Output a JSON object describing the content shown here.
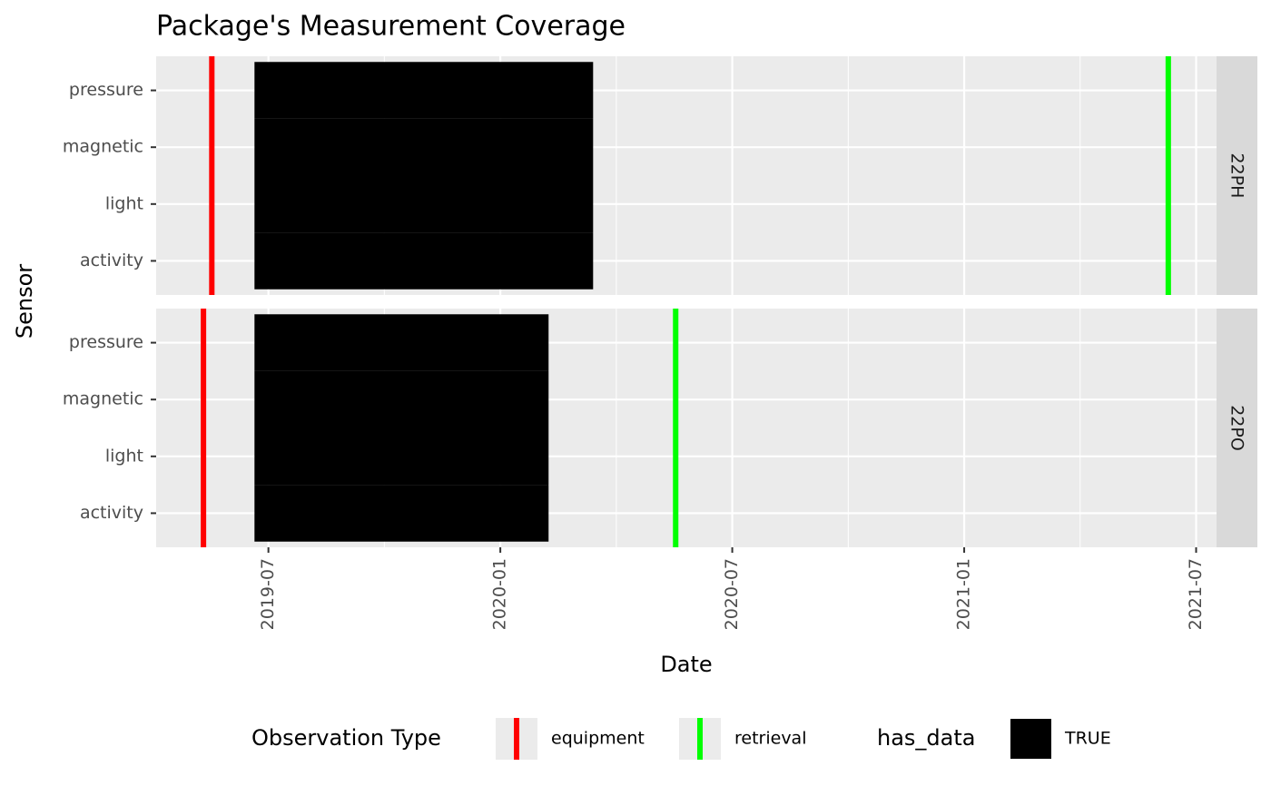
{
  "chart_data": {
    "type": "timeline",
    "title": "Package's Measurement Coverage",
    "x_label": "Date",
    "y_label": "Sensor",
    "categories": [
      "activity",
      "light",
      "magnetic",
      "pressure"
    ],
    "xlim": [
      2019.258,
      2021.544
    ],
    "xticks": [
      {
        "value": 2019.5,
        "label": "2019-07"
      },
      {
        "value": 2020.0,
        "label": "2020-01"
      },
      {
        "value": 2020.5,
        "label": "2020-07"
      },
      {
        "value": 2021.0,
        "label": "2021-01"
      },
      {
        "value": 2021.5,
        "label": "2021-07"
      }
    ],
    "x_minor_ticks": [
      2019.75,
      2020.25,
      2020.75,
      2021.25
    ],
    "grid": true,
    "panels": [
      {
        "label": "22PH",
        "starts": [
          2019.47,
          2019.47,
          2019.47,
          2019.47
        ],
        "ends": [
          2020.2,
          2020.2,
          2020.2,
          2020.2
        ],
        "equipment": 2019.378,
        "retrieval": 2021.44
      },
      {
        "label": "22PO",
        "starts": [
          2019.47,
          2019.47,
          2019.47,
          2019.47
        ],
        "ends": [
          2020.104,
          2020.104,
          2020.104,
          2020.104
        ],
        "equipment": 2019.36,
        "retrieval": 2020.378
      }
    ],
    "legend": {
      "line_title": "Observation Type",
      "equipment": {
        "name": "equipment",
        "color": "#ff0000"
      },
      "retrieval": {
        "name": "retrieval",
        "color": "#00ff00"
      },
      "fill_title": "has_data",
      "fill": {
        "name": "TRUE",
        "color": "#000000"
      }
    }
  }
}
